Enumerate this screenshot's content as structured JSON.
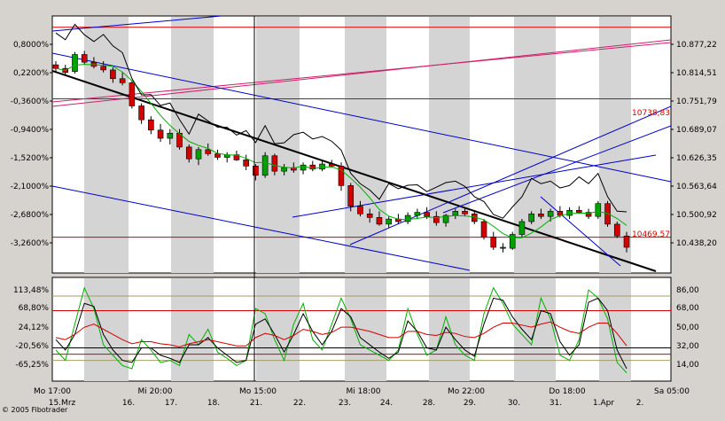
{
  "app": {
    "copyright": "© 2005 Fibotrader"
  },
  "chart_data": [
    {
      "type": "candlestick",
      "panel": "price",
      "title": "",
      "left_axis_ticks": [
        "0,8000%",
        "0,2200%",
        "-0,3600%",
        "-0,9400%",
        "-1,5200%",
        "-2,1000%",
        "-2,6800%",
        "-3,2600%"
      ],
      "right_axis_ticks": [
        "10.877,22",
        "10.814,51",
        "10.751,79",
        "10.689,07",
        "10.626,35",
        "10.563,64",
        "10.500,92",
        "10.438,20"
      ],
      "price_labels": [
        {
          "text": "10738,83",
          "color": "#d40000"
        },
        {
          "text": "10469,57",
          "color": "#d40000"
        }
      ],
      "ylim": [
        10400,
        10900
      ],
      "horizontal_lines": [
        {
          "value": 10738.83,
          "color": "#d40000"
        },
        {
          "value": 10469.57,
          "color": "#d40000"
        },
        {
          "value": 10878,
          "color": "#d40000"
        }
      ],
      "candles": [
        {
          "o": 10805,
          "h": 10812,
          "l": 10790,
          "c": 10798
        },
        {
          "o": 10798,
          "h": 10805,
          "l": 10785,
          "c": 10790
        },
        {
          "o": 10792,
          "h": 10830,
          "l": 10788,
          "c": 10825
        },
        {
          "o": 10825,
          "h": 10832,
          "l": 10805,
          "c": 10810
        },
        {
          "o": 10810,
          "h": 10820,
          "l": 10798,
          "c": 10802
        },
        {
          "o": 10802,
          "h": 10812,
          "l": 10790,
          "c": 10795
        },
        {
          "o": 10795,
          "h": 10800,
          "l": 10770,
          "c": 10778
        },
        {
          "o": 10778,
          "h": 10790,
          "l": 10765,
          "c": 10770
        },
        {
          "o": 10770,
          "h": 10775,
          "l": 10720,
          "c": 10725
        },
        {
          "o": 10725,
          "h": 10730,
          "l": 10690,
          "c": 10698
        },
        {
          "o": 10698,
          "h": 10705,
          "l": 10670,
          "c": 10678
        },
        {
          "o": 10678,
          "h": 10690,
          "l": 10655,
          "c": 10662
        },
        {
          "o": 10662,
          "h": 10680,
          "l": 10650,
          "c": 10672
        },
        {
          "o": 10672,
          "h": 10680,
          "l": 10640,
          "c": 10645
        },
        {
          "o": 10645,
          "h": 10650,
          "l": 10615,
          "c": 10622
        },
        {
          "o": 10622,
          "h": 10645,
          "l": 10610,
          "c": 10640
        },
        {
          "o": 10640,
          "h": 10652,
          "l": 10628,
          "c": 10632
        },
        {
          "o": 10632,
          "h": 10640,
          "l": 10620,
          "c": 10625
        },
        {
          "o": 10625,
          "h": 10635,
          "l": 10615,
          "c": 10630
        },
        {
          "o": 10630,
          "h": 10638,
          "l": 10618,
          "c": 10620
        },
        {
          "o": 10620,
          "h": 10630,
          "l": 10600,
          "c": 10608
        },
        {
          "o": 10608,
          "h": 10612,
          "l": 10580,
          "c": 10590
        },
        {
          "o": 10590,
          "h": 10635,
          "l": 10585,
          "c": 10628
        },
        {
          "o": 10628,
          "h": 10632,
          "l": 10590,
          "c": 10598
        },
        {
          "o": 10598,
          "h": 10612,
          "l": 10590,
          "c": 10605
        },
        {
          "o": 10605,
          "h": 10615,
          "l": 10595,
          "c": 10600
        },
        {
          "o": 10600,
          "h": 10615,
          "l": 10592,
          "c": 10610
        },
        {
          "o": 10610,
          "h": 10618,
          "l": 10598,
          "c": 10602
        },
        {
          "o": 10602,
          "h": 10620,
          "l": 10598,
          "c": 10612
        },
        {
          "o": 10612,
          "h": 10620,
          "l": 10605,
          "c": 10608
        },
        {
          "o": 10608,
          "h": 10615,
          "l": 10560,
          "c": 10570
        },
        {
          "o": 10570,
          "h": 10575,
          "l": 10520,
          "c": 10530
        },
        {
          "o": 10530,
          "h": 10540,
          "l": 10510,
          "c": 10515
        },
        {
          "o": 10515,
          "h": 10525,
          "l": 10498,
          "c": 10508
        },
        {
          "o": 10508,
          "h": 10520,
          "l": 10492,
          "c": 10495
        },
        {
          "o": 10495,
          "h": 10510,
          "l": 10488,
          "c": 10505
        },
        {
          "o": 10505,
          "h": 10515,
          "l": 10495,
          "c": 10500
        },
        {
          "o": 10500,
          "h": 10518,
          "l": 10495,
          "c": 10512
        },
        {
          "o": 10512,
          "h": 10525,
          "l": 10505,
          "c": 10518
        },
        {
          "o": 10518,
          "h": 10528,
          "l": 10505,
          "c": 10510
        },
        {
          "o": 10510,
          "h": 10520,
          "l": 10492,
          "c": 10498
        },
        {
          "o": 10498,
          "h": 10515,
          "l": 10490,
          "c": 10512
        },
        {
          "o": 10512,
          "h": 10525,
          "l": 10505,
          "c": 10520
        },
        {
          "o": 10520,
          "h": 10528,
          "l": 10510,
          "c": 10515
        },
        {
          "o": 10515,
          "h": 10522,
          "l": 10495,
          "c": 10500
        },
        {
          "o": 10500,
          "h": 10505,
          "l": 10465,
          "c": 10470
        },
        {
          "o": 10470,
          "h": 10480,
          "l": 10445,
          "c": 10450
        },
        {
          "o": 10450,
          "h": 10458,
          "l": 10440,
          "c": 10448
        },
        {
          "o": 10448,
          "h": 10480,
          "l": 10445,
          "c": 10475
        },
        {
          "o": 10475,
          "h": 10505,
          "l": 10470,
          "c": 10500
        },
        {
          "o": 10500,
          "h": 10520,
          "l": 10495,
          "c": 10515
        },
        {
          "o": 10515,
          "h": 10525,
          "l": 10505,
          "c": 10510
        },
        {
          "o": 10510,
          "h": 10525,
          "l": 10500,
          "c": 10520
        },
        {
          "o": 10520,
          "h": 10530,
          "l": 10508,
          "c": 10512
        },
        {
          "o": 10512,
          "h": 10528,
          "l": 10505,
          "c": 10522
        },
        {
          "o": 10522,
          "h": 10530,
          "l": 10515,
          "c": 10518
        },
        {
          "o": 10518,
          "h": 10525,
          "l": 10505,
          "c": 10510
        },
        {
          "o": 10510,
          "h": 10540,
          "l": 10505,
          "c": 10535
        },
        {
          "o": 10535,
          "h": 10540,
          "l": 10490,
          "c": 10495
        },
        {
          "o": 10495,
          "h": 10500,
          "l": 10468,
          "c": 10472
        },
        {
          "o": 10472,
          "h": 10480,
          "l": 10440,
          "c": 10450
        }
      ]
    },
    {
      "type": "line",
      "panel": "oscillator",
      "title": "",
      "left_axis_ticks": [
        "113,48%",
        "68,80%",
        "24,12%",
        "-20,56%",
        "-65,25%"
      ],
      "right_axis_ticks": [
        "86,00",
        "68,00",
        "50,00",
        "32,00",
        "14,00"
      ],
      "ylim": [
        0,
        100
      ],
      "horizontal_lines": [
        {
          "value": 82,
          "color": "#a0a060"
        },
        {
          "value": 68,
          "color": "#d40000"
        },
        {
          "value": 32,
          "color": "#000000"
        },
        {
          "value": 26,
          "color": "#d40000"
        },
        {
          "value": 20,
          "color": "#a0a060"
        }
      ],
      "series": [
        {
          "color": "#00b000",
          "values": [
            30,
            20,
            55,
            90,
            70,
            35,
            25,
            15,
            12,
            40,
            30,
            18,
            20,
            15,
            45,
            35,
            50,
            28,
            22,
            15,
            20,
            70,
            65,
            40,
            20,
            55,
            75,
            40,
            30,
            55,
            80,
            60,
            35,
            30,
            25,
            20,
            30,
            70,
            45,
            25,
            30,
            62,
            35,
            25,
            20,
            65,
            90,
            75,
            55,
            45,
            35,
            80,
            60,
            25,
            20,
            40,
            88,
            80,
            60,
            18,
            8
          ]
        },
        {
          "color": "#000000",
          "values": [
            40,
            30,
            45,
            75,
            72,
            45,
            30,
            20,
            18,
            32,
            32,
            25,
            22,
            18,
            35,
            35,
            42,
            32,
            25,
            18,
            20,
            55,
            60,
            45,
            28,
            45,
            65,
            48,
            35,
            48,
            70,
            62,
            42,
            35,
            28,
            22,
            28,
            58,
            48,
            32,
            30,
            52,
            40,
            30,
            24,
            55,
            80,
            78,
            62,
            50,
            40,
            68,
            65,
            38,
            25,
            35,
            76,
            80,
            68,
            30,
            12
          ]
        },
        {
          "color": "#d40000",
          "values": [
            42,
            40,
            45,
            52,
            55,
            50,
            45,
            40,
            36,
            38,
            38,
            36,
            35,
            33,
            36,
            38,
            40,
            38,
            36,
            34,
            34,
            42,
            46,
            44,
            40,
            44,
            50,
            48,
            45,
            47,
            52,
            52,
            50,
            48,
            45,
            42,
            42,
            48,
            48,
            45,
            44,
            47,
            46,
            43,
            42,
            46,
            52,
            56,
            56,
            54,
            52,
            55,
            57,
            52,
            48,
            46,
            52,
            56,
            56,
            46,
            34
          ]
        }
      ]
    }
  ],
  "x_axis_top_row": [
    "Mo 17:00",
    "Mi 20:00",
    "Mo 15:00",
    "Mi 18:00",
    "Mo 22:00",
    "Do 18:00",
    "Sa 05:00"
  ],
  "x_axis_bottom_row": [
    "15.Mrz",
    "16.",
    "17.",
    "18.",
    "21.",
    "22.",
    "23.",
    "24.",
    "28.",
    "29.",
    "30.",
    "31.",
    "1.Apr",
    "2."
  ]
}
